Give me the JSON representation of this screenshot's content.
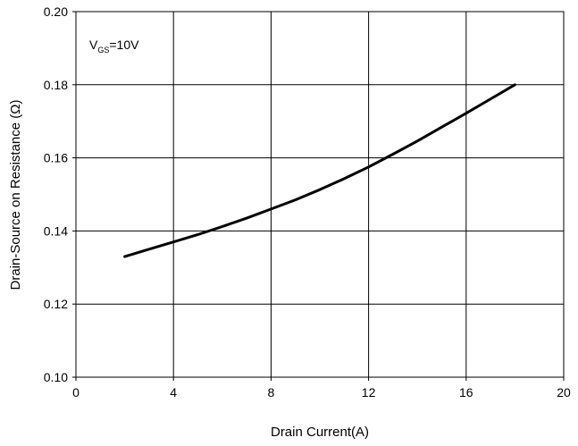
{
  "chart_data": {
    "type": "line",
    "title": "",
    "xlabel": "Drain Current(A)",
    "ylabel": "Drain-Source on Resistance (Ω)",
    "xlim": [
      0,
      20
    ],
    "ylim": [
      0.1,
      0.2
    ],
    "x_ticks": [
      0,
      4,
      8,
      12,
      16,
      20
    ],
    "y_ticks": [
      0.1,
      0.12,
      0.14,
      0.16,
      0.18,
      0.2
    ],
    "x_tick_labels": [
      "0",
      "4",
      "8",
      "12",
      "16",
      "20"
    ],
    "y_tick_labels": [
      "0.10",
      "0.12",
      "0.14",
      "0.16",
      "0.18",
      "0.20"
    ],
    "grid": true,
    "legend": "none",
    "annotation": {
      "main": "V",
      "subscript": "GS",
      "suffix": "=10V"
    },
    "series": [
      {
        "color": "#000000",
        "x": [
          2,
          3,
          4,
          5,
          6,
          7,
          8,
          9,
          10,
          11,
          12,
          13,
          14,
          15,
          16,
          17,
          18
        ],
        "y": [
          0.133,
          0.135,
          0.137,
          0.139,
          0.1412,
          0.1435,
          0.146,
          0.1485,
          0.1513,
          0.1543,
          0.1575,
          0.161,
          0.1646,
          0.1684,
          0.1722,
          0.1761,
          0.18
        ]
      }
    ]
  }
}
